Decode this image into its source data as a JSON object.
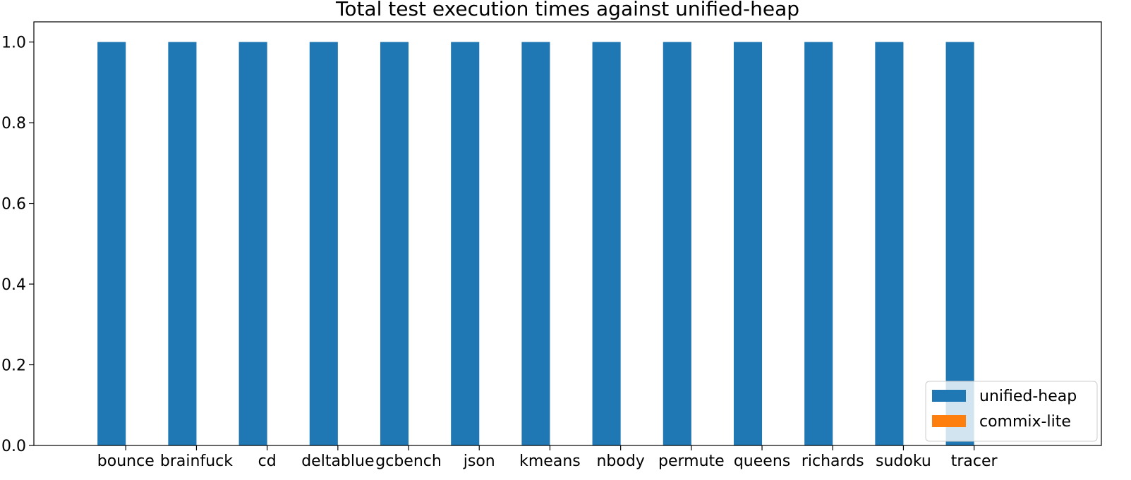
{
  "chart_data": {
    "type": "bar",
    "title": "Total test execution times against unified-heap",
    "xlabel": "",
    "ylabel": "",
    "categories": [
      "bounce",
      "brainfuck",
      "cd",
      "deltablue",
      "gcbench",
      "json",
      "kmeans",
      "nbody",
      "permute",
      "queens",
      "richards",
      "sudoku",
      "tracer"
    ],
    "series": [
      {
        "name": "unified-heap",
        "color": "#1f77b4",
        "values": [
          1.0,
          1.0,
          1.0,
          1.0,
          1.0,
          1.0,
          1.0,
          1.0,
          1.0,
          1.0,
          1.0,
          1.0,
          1.0
        ]
      },
      {
        "name": "commix-lite",
        "color": "#ff7f0e",
        "values": [
          0,
          0,
          0,
          0,
          0,
          0,
          0,
          0,
          0,
          0,
          0,
          0,
          0
        ]
      }
    ],
    "ylim": [
      0,
      1.05
    ],
    "yticks": [
      "0.0",
      "0.2",
      "0.4",
      "0.6",
      "0.8",
      "1.0"
    ],
    "grid": false,
    "legend_position": "bottom-right"
  }
}
